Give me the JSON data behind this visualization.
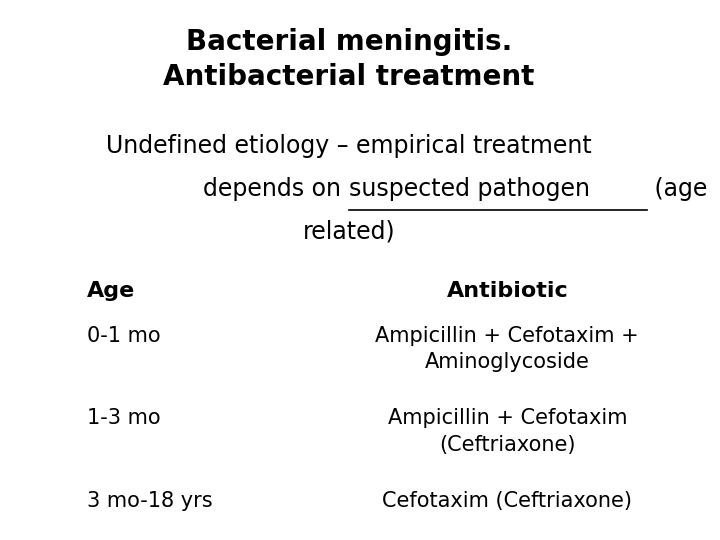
{
  "title_line1": "Bacterial meningitis.",
  "title_line2": "Antibacterial treatment",
  "subtitle_line1": "Undefined etiology – empirical treatment",
  "subtitle_pre_underline": "depends on ",
  "subtitle_underline": "suspected pathogen",
  "subtitle_post_underline": " (age",
  "subtitle_line3": "related)",
  "col_age_header": "Age",
  "col_antibiotic_header": "Antibiotic",
  "rows": [
    {
      "age": "0-1 mo",
      "antibiotic_line1": "Ampicillin + Cefotaxim +",
      "antibiotic_line2": "Aminoglycoside"
    },
    {
      "age": "1-3 mo",
      "antibiotic_line1": "Ampicillin + Cefotaxim",
      "antibiotic_line2": "(Ceftriaxone)"
    },
    {
      "age": "3 mo-18 yrs",
      "antibiotic_line1": "Cefotaxim (Ceftriaxone)",
      "antibiotic_line2": ""
    }
  ],
  "bg_color": "#ffffff",
  "text_color": "#000000",
  "title_fontsize": 20,
  "subtitle_fontsize": 17,
  "header_fontsize": 16,
  "row_fontsize": 15
}
